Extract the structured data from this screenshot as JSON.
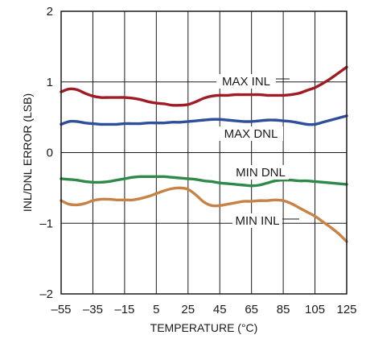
{
  "chart_data": {
    "type": "line",
    "xlabel": "TEMPERATURE (°C)",
    "ylabel": "INL/DNL ERROR (LSB)",
    "xlim": [
      -55,
      125
    ],
    "ylim": [
      -2,
      2
    ],
    "x_ticks": [
      -55,
      -35,
      -15,
      5,
      25,
      45,
      65,
      85,
      105,
      125
    ],
    "x_tick_labels": [
      "–55",
      "–35",
      "–15",
      "5",
      "25",
      "45",
      "65",
      "85",
      "105",
      "125"
    ],
    "y_ticks": [
      -2,
      -1,
      0,
      1,
      2
    ],
    "y_tick_labels": [
      "–2",
      "–1",
      "0",
      "1",
      "2"
    ],
    "grid": true,
    "legend": "none",
    "series": [
      {
        "name": "MAX INL",
        "color": "#a01c24",
        "x": [
          -55,
          -50,
          -45,
          -40,
          -35,
          -30,
          -25,
          -20,
          -15,
          -10,
          -5,
          0,
          5,
          10,
          15,
          20,
          25,
          30,
          35,
          40,
          45,
          50,
          55,
          60,
          65,
          70,
          75,
          80,
          85,
          90,
          95,
          100,
          105,
          110,
          115,
          120,
          125
        ],
        "values": [
          0.86,
          0.9,
          0.89,
          0.84,
          0.8,
          0.78,
          0.78,
          0.78,
          0.78,
          0.77,
          0.75,
          0.72,
          0.7,
          0.69,
          0.67,
          0.67,
          0.68,
          0.72,
          0.77,
          0.8,
          0.81,
          0.81,
          0.82,
          0.82,
          0.82,
          0.82,
          0.81,
          0.81,
          0.81,
          0.82,
          0.84,
          0.88,
          0.92,
          0.98,
          1.05,
          1.13,
          1.21
        ]
      },
      {
        "name": "MAX DNL",
        "color": "#2e4f9c",
        "x": [
          -55,
          -50,
          -45,
          -40,
          -35,
          -30,
          -25,
          -20,
          -15,
          -10,
          -5,
          0,
          5,
          10,
          15,
          20,
          25,
          30,
          35,
          40,
          45,
          50,
          55,
          60,
          65,
          70,
          75,
          80,
          85,
          90,
          95,
          100,
          105,
          110,
          115,
          120,
          125
        ],
        "values": [
          0.4,
          0.44,
          0.44,
          0.42,
          0.41,
          0.4,
          0.4,
          0.4,
          0.41,
          0.41,
          0.41,
          0.42,
          0.42,
          0.42,
          0.43,
          0.43,
          0.44,
          0.45,
          0.46,
          0.47,
          0.47,
          0.46,
          0.45,
          0.44,
          0.44,
          0.45,
          0.46,
          0.46,
          0.45,
          0.44,
          0.42,
          0.4,
          0.4,
          0.43,
          0.46,
          0.49,
          0.52
        ]
      },
      {
        "name": "MIN DNL",
        "color": "#2f8a4a",
        "x": [
          -55,
          -50,
          -45,
          -40,
          -35,
          -30,
          -25,
          -20,
          -15,
          -10,
          -5,
          0,
          5,
          10,
          15,
          20,
          25,
          30,
          35,
          40,
          45,
          50,
          55,
          60,
          65,
          70,
          75,
          80,
          85,
          90,
          95,
          100,
          105,
          110,
          115,
          120,
          125
        ],
        "values": [
          -0.37,
          -0.38,
          -0.39,
          -0.41,
          -0.42,
          -0.42,
          -0.41,
          -0.39,
          -0.37,
          -0.35,
          -0.34,
          -0.34,
          -0.34,
          -0.34,
          -0.35,
          -0.36,
          -0.37,
          -0.38,
          -0.4,
          -0.41,
          -0.43,
          -0.44,
          -0.45,
          -0.46,
          -0.47,
          -0.46,
          -0.43,
          -0.4,
          -0.39,
          -0.39,
          -0.4,
          -0.4,
          -0.41,
          -0.42,
          -0.43,
          -0.44,
          -0.45
        ]
      },
      {
        "name": "MIN INL",
        "color": "#c68345",
        "x": [
          -55,
          -50,
          -45,
          -40,
          -35,
          -30,
          -25,
          -20,
          -15,
          -10,
          -5,
          0,
          5,
          10,
          15,
          20,
          25,
          30,
          35,
          40,
          45,
          50,
          55,
          60,
          65,
          70,
          75,
          80,
          85,
          90,
          95,
          100,
          105,
          110,
          115,
          120,
          125
        ],
        "values": [
          -0.68,
          -0.73,
          -0.74,
          -0.72,
          -0.68,
          -0.66,
          -0.66,
          -0.67,
          -0.67,
          -0.67,
          -0.65,
          -0.62,
          -0.58,
          -0.54,
          -0.51,
          -0.5,
          -0.52,
          -0.6,
          -0.7,
          -0.75,
          -0.75,
          -0.73,
          -0.71,
          -0.69,
          -0.69,
          -0.68,
          -0.68,
          -0.67,
          -0.68,
          -0.72,
          -0.78,
          -0.84,
          -0.9,
          -0.98,
          -1.06,
          -1.15,
          -1.26
        ]
      }
    ],
    "annotations": [
      "MAX INL",
      "MAX DNL",
      "MIN DNL",
      "MIN INL"
    ]
  }
}
